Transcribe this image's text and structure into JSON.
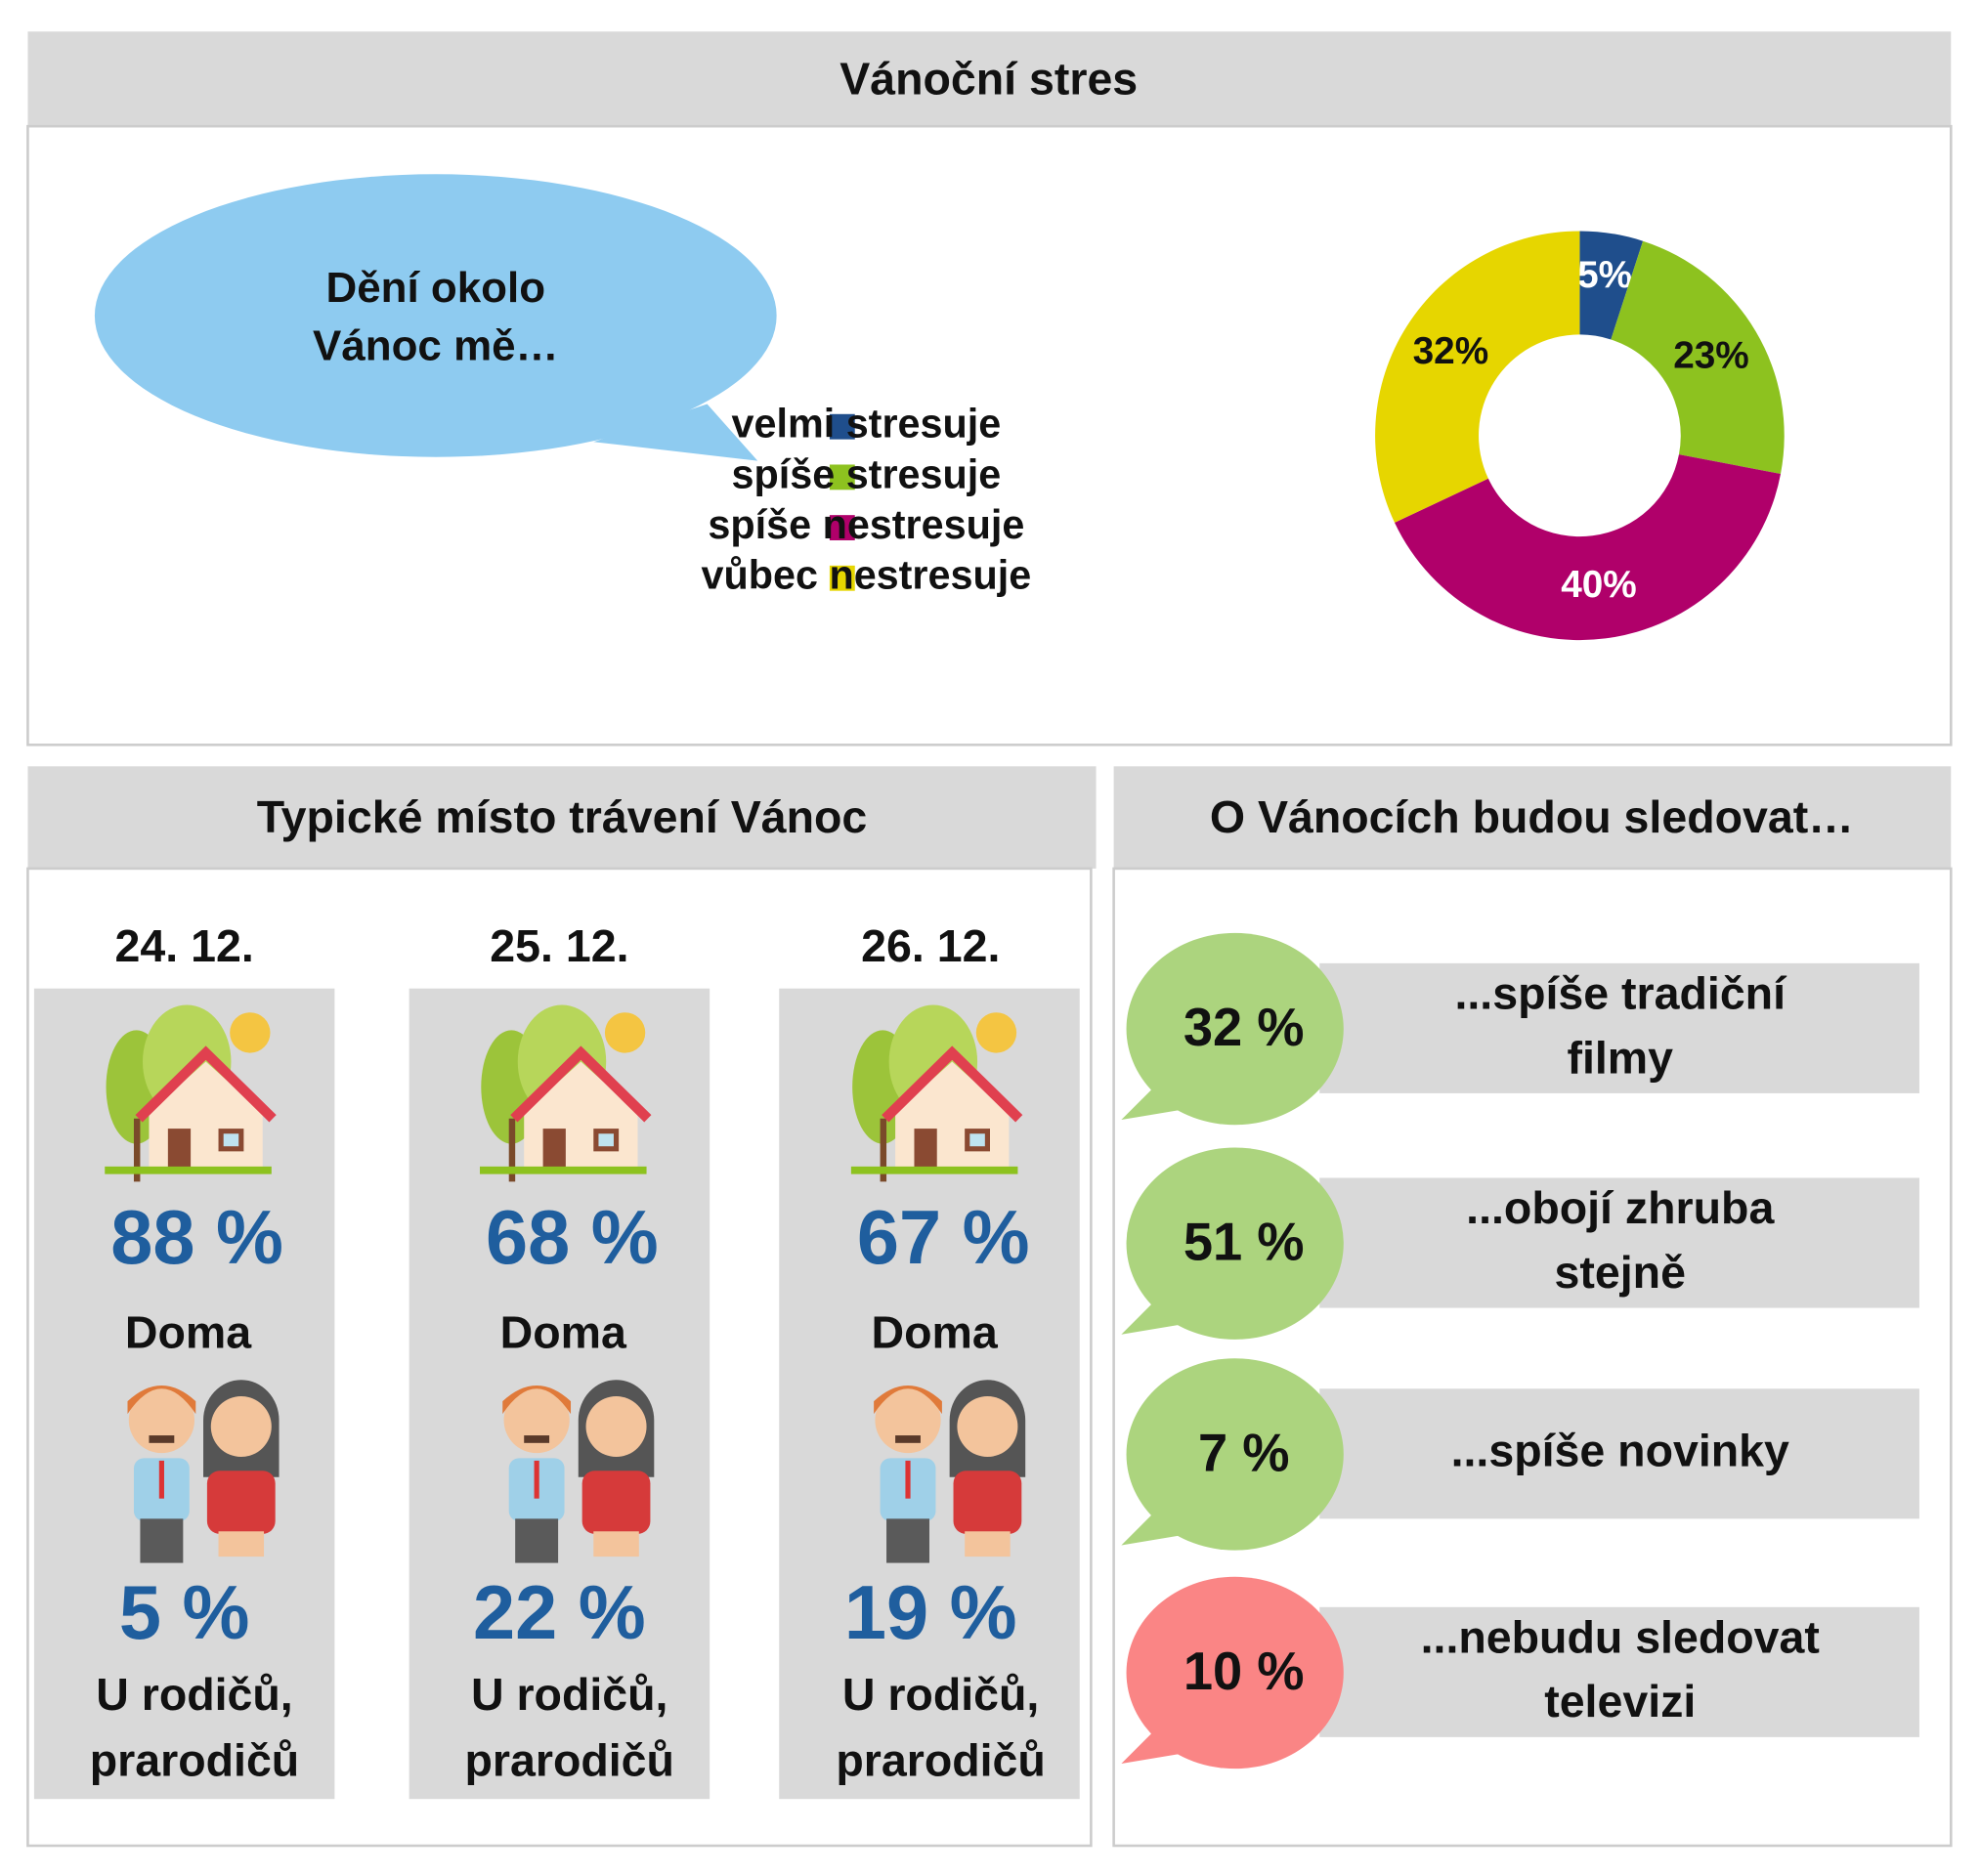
{
  "chart_data": {
    "type": "donut",
    "title": "Vánoční stres",
    "annotation": "Dění okolo Vánoc mě…",
    "categories": [
      "velmi stresuje",
      "spíše stresuje",
      "spíše nestresuje",
      "vůbec nestresuje"
    ],
    "values": [
      5,
      23,
      40,
      32
    ],
    "value_labels": [
      "5%",
      "23%",
      "40%",
      "32%"
    ],
    "colors": [
      "#1f4e8c",
      "#8dc21f",
      "#b0006a",
      "#e6d600"
    ],
    "legend": "left"
  },
  "places": {
    "title": "Typické místo trávení Vánoc",
    "columns": [
      {
        "date": "24. 12.",
        "home_value": "88 %",
        "home_label": "Doma",
        "parents_value": "5 %",
        "parents_label": [
          "U rodičů,",
          "prarodičů"
        ]
      },
      {
        "date": "25. 12.",
        "home_value": "68 %",
        "home_label": "Doma",
        "parents_value": "22 %",
        "parents_label": [
          "U rodičů,",
          "prarodičů"
        ]
      },
      {
        "date": "26. 12.",
        "home_value": "67 %",
        "home_label": "Doma",
        "parents_value": "19 %",
        "parents_label": [
          "U rodičů,",
          "prarodičů"
        ]
      }
    ]
  },
  "tv": {
    "title": "O Vánocích budou sledovat…",
    "items": [
      {
        "value": "32 %",
        "label": [
          "...spíše tradiční",
          "filmy"
        ]
      },
      {
        "value": "51 %",
        "label": [
          "...obojí zhruba",
          "stejně"
        ]
      },
      {
        "value": "7 %",
        "label": [
          "...spíše novinky"
        ]
      },
      {
        "value": "10 %",
        "label": [
          "...nebudu sledovat",
          "televizi"
        ]
      }
    ]
  }
}
